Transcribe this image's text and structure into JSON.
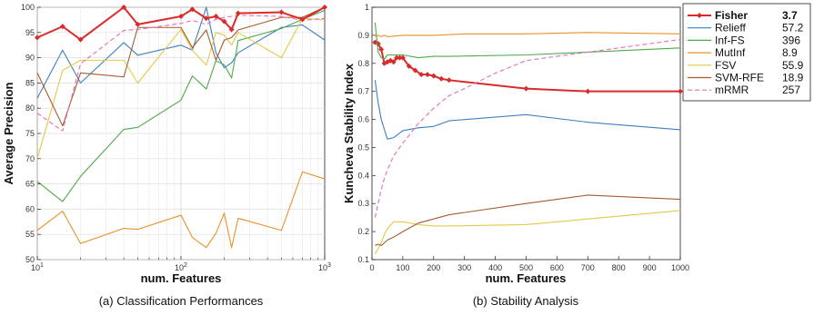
{
  "chart_data": [
    {
      "type": "line",
      "caption": "(a) Classification Performances",
      "xlabel": "num. Features",
      "ylabel": "Average Precision",
      "xscale": "log",
      "xlim": [
        10,
        1000
      ],
      "ylim": [
        50,
        100
      ],
      "xticks": [
        10,
        100,
        1000
      ],
      "xtick_labels": [
        {
          "base": "10",
          "exp": "1"
        },
        {
          "base": "10",
          "exp": "2"
        },
        {
          "base": "10",
          "exp": "3"
        }
      ],
      "yticks": [
        50,
        55,
        60,
        65,
        70,
        75,
        80,
        85,
        90,
        95,
        100
      ],
      "ytick_labels": [
        "50",
        "55",
        "60",
        "65",
        "70",
        "75",
        "80",
        "85",
        "90",
        "95",
        "100"
      ],
      "grid": true,
      "series": [
        {
          "name": "Relieff",
          "color": "#3c7fc0",
          "markers": false,
          "x": [
            10,
            15,
            20,
            40,
            50,
            100,
            120,
            150,
            175,
            200,
            225,
            250,
            500,
            700,
            1000
          ],
          "y": [
            82,
            91.5,
            85,
            93,
            90.5,
            92.5,
            91.5,
            100,
            91,
            88,
            89,
            91,
            96,
            96.5,
            93.5
          ]
        },
        {
          "name": "Inf-FS",
          "color": "#4ea94b",
          "markers": false,
          "x": [
            10,
            15,
            20,
            40,
            50,
            100,
            120,
            150,
            175,
            200,
            225,
            250,
            500,
            700,
            1000
          ],
          "y": [
            65.5,
            61.5,
            66.5,
            75.8,
            76.2,
            81.6,
            86.4,
            83.8,
            89.4,
            88.6,
            86,
            93.4,
            95.8,
            97.6,
            99.4
          ]
        },
        {
          "name": "MutInf",
          "color": "#e8922a",
          "markers": false,
          "x": [
            10,
            15,
            20,
            40,
            50,
            100,
            120,
            150,
            175,
            200,
            225,
            250,
            500,
            700,
            1000
          ],
          "y": [
            55.8,
            59.6,
            53.2,
            56.2,
            56,
            58.8,
            54.4,
            52.4,
            55.2,
            59.2,
            52.4,
            58.2,
            55.8,
            67.4,
            66
          ]
        },
        {
          "name": "FSV",
          "color": "#e3c94a",
          "markers": false,
          "x": [
            10,
            15,
            20,
            40,
            50,
            100,
            120,
            150,
            175,
            200,
            225,
            250,
            500,
            700,
            1000
          ],
          "y": [
            70,
            87.5,
            89.5,
            89.5,
            85,
            95.6,
            91.5,
            88.5,
            95,
            94.5,
            92.5,
            95,
            90,
            97.8,
            97.5
          ]
        },
        {
          "name": "SVM-RFE",
          "color": "#a75b2e",
          "markers": false,
          "x": [
            10,
            15,
            20,
            40,
            50,
            100,
            120,
            150,
            175,
            200,
            225,
            250,
            500,
            700,
            1000
          ],
          "y": [
            87,
            76.5,
            87,
            86.2,
            96,
            96,
            92,
            95.5,
            89.5,
            93.5,
            94,
            95.5,
            98,
            98,
            100
          ]
        },
        {
          "name": "mRMR",
          "color": "#e36fb5",
          "dashed": true,
          "markers": false,
          "x": [
            10,
            15,
            20,
            40,
            50,
            100,
            120,
            150,
            175,
            200,
            225,
            250,
            500,
            700,
            1000
          ],
          "y": [
            79,
            75.5,
            88.8,
            95.4,
            95.6,
            96.8,
            97.4,
            96.6,
            97.6,
            98,
            98.2,
            98.4,
            98.2,
            97.4,
            97.8
          ]
        },
        {
          "name": "Fisher",
          "color": "#d92b2b",
          "markers": true,
          "bold": true,
          "x": [
            10,
            15,
            20,
            40,
            50,
            100,
            120,
            150,
            175,
            200,
            225,
            250,
            500,
            700,
            1000
          ],
          "y": [
            94,
            96.2,
            93.6,
            100,
            96.6,
            98.2,
            99.6,
            97.8,
            98.2,
            97.2,
            95.6,
            98.8,
            99,
            97.6,
            100
          ]
        }
      ]
    },
    {
      "type": "line",
      "caption": "(b) Stability Analysis",
      "xlabel": "num. Features",
      "ylabel": "Kuncheva Stability Index",
      "xscale": "linear",
      "xlim": [
        0,
        1000
      ],
      "ylim": [
        0.1,
        1.0
      ],
      "xticks": [
        0,
        100,
        200,
        300,
        400,
        500,
        600,
        700,
        800,
        900,
        1000
      ],
      "xtick_labels": [
        "0",
        "100",
        "200",
        "300",
        "400",
        "500",
        "600",
        "700",
        "800",
        "900",
        "1000"
      ],
      "yticks": [
        0.1,
        0.2,
        0.3,
        0.4,
        0.5,
        0.6,
        0.7,
        0.8,
        0.9,
        1.0
      ],
      "ytick_labels": [
        "0.1",
        "0.2",
        "0.3",
        "0.4",
        "0.5",
        "0.6",
        "0.7",
        "0.8",
        "0.9",
        "1"
      ],
      "grid": false,
      "legend_position": "outside-right-top",
      "series": [
        {
          "name": "Fisher",
          "score": "3.7",
          "color": "#d92b2b",
          "markers": true,
          "bold": true,
          "x": [
            10,
            20,
            30,
            40,
            50,
            60,
            70,
            80,
            90,
            100,
            120,
            140,
            160,
            180,
            200,
            225,
            250,
            500,
            700,
            1000
          ],
          "y": [
            0.875,
            0.87,
            0.85,
            0.8,
            0.805,
            0.81,
            0.805,
            0.82,
            0.82,
            0.82,
            0.79,
            0.775,
            0.76,
            0.76,
            0.755,
            0.745,
            0.74,
            0.71,
            0.7,
            0.7
          ]
        },
        {
          "name": "Relieff",
          "score": "57.2",
          "color": "#3c7fc0",
          "markers": false,
          "x": [
            10,
            20,
            30,
            40,
            50,
            70,
            100,
            150,
            200,
            250,
            500,
            700,
            1000
          ],
          "y": [
            0.74,
            0.66,
            0.6,
            0.565,
            0.53,
            0.535,
            0.56,
            0.57,
            0.575,
            0.595,
            0.617,
            0.59,
            0.563
          ]
        },
        {
          "name": "Inf-FS",
          "score": "396",
          "color": "#4ea94b",
          "markers": false,
          "x": [
            10,
            20,
            30,
            40,
            50,
            100,
            150,
            200,
            250,
            500,
            700,
            1000
          ],
          "y": [
            0.945,
            0.84,
            0.82,
            0.815,
            0.83,
            0.83,
            0.82,
            0.825,
            0.825,
            0.83,
            0.84,
            0.855
          ]
        },
        {
          "name": "MutInf",
          "score": "8.9",
          "color": "#e8922a",
          "markers": false,
          "x": [
            10,
            20,
            30,
            40,
            50,
            100,
            200,
            300,
            500,
            700,
            1000
          ],
          "y": [
            0.895,
            0.9,
            0.895,
            0.9,
            0.895,
            0.9,
            0.9,
            0.905,
            0.905,
            0.91,
            0.905
          ]
        },
        {
          "name": "FSV",
          "score": "55.9",
          "color": "#e3c94a",
          "markers": false,
          "x": [
            10,
            20,
            30,
            40,
            50,
            70,
            100,
            150,
            200,
            250,
            500,
            700,
            1000
          ],
          "y": [
            0.12,
            0.14,
            0.16,
            0.19,
            0.21,
            0.235,
            0.235,
            0.225,
            0.22,
            0.22,
            0.225,
            0.245,
            0.275
          ]
        },
        {
          "name": "SVM-RFE",
          "score": "18.9",
          "color": "#a75b2e",
          "markers": false,
          "x": [
            10,
            20,
            30,
            40,
            50,
            70,
            100,
            150,
            200,
            250,
            500,
            700,
            1000
          ],
          "y": [
            0.15,
            0.155,
            0.15,
            0.16,
            0.17,
            0.18,
            0.2,
            0.23,
            0.245,
            0.26,
            0.3,
            0.33,
            0.315
          ]
        },
        {
          "name": "mRMR",
          "score": "257",
          "color": "#e36fb5",
          "dashed": true,
          "markers": false,
          "x": [
            10,
            20,
            30,
            40,
            50,
            70,
            100,
            150,
            200,
            250,
            300,
            400,
            500,
            700,
            1000
          ],
          "y": [
            0.25,
            0.3,
            0.35,
            0.39,
            0.42,
            0.47,
            0.515,
            0.585,
            0.64,
            0.685,
            0.71,
            0.765,
            0.81,
            0.84,
            0.885
          ]
        }
      ]
    }
  ]
}
